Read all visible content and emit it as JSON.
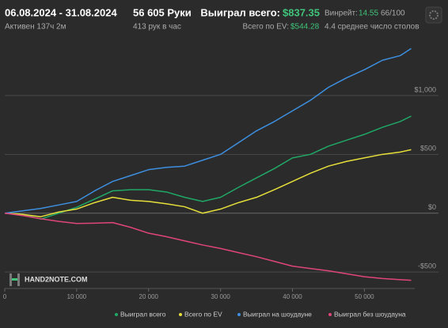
{
  "header": {
    "date_range": "06.08.2024 - 31.08.2024",
    "active": "Активен 137ч 2м",
    "hands": "56 605 Руки",
    "hands_per_hour": "413 рук в час",
    "won_label": "Выиграл всего:",
    "won_value": "$837.35",
    "ev_label": "Всего по EV:",
    "ev_value": "$544.28",
    "winrate_label": "Винрейт:",
    "winrate_value": "14.55",
    "winrate_unit": "66/100",
    "tables": "4.4 среднее число столов"
  },
  "watermark": "HAND2NOTE.COM",
  "chart_data": {
    "type": "line",
    "x": [
      0,
      2500,
      5000,
      7500,
      10000,
      12500,
      15000,
      17500,
      20000,
      22500,
      25000,
      27500,
      30000,
      32500,
      35000,
      37500,
      40000,
      42500,
      45000,
      47500,
      50000,
      52500,
      55000,
      56500
    ],
    "series": [
      {
        "name": "Выиграл всего",
        "color": "#1fa866",
        "values": [
          0,
          -10,
          -50,
          0,
          50,
          120,
          190,
          200,
          200,
          180,
          135,
          100,
          135,
          220,
          300,
          380,
          470,
          500,
          570,
          620,
          670,
          730,
          780,
          825
        ]
      },
      {
        "name": "Всего по EV",
        "color": "#e6df3a",
        "values": [
          0,
          -10,
          -30,
          10,
          35,
          90,
          135,
          110,
          100,
          80,
          55,
          0,
          35,
          90,
          135,
          200,
          270,
          340,
          400,
          440,
          470,
          500,
          520,
          540
        ]
      },
      {
        "name": "Выиграл на шоудауне",
        "color": "#3d8fe0",
        "values": [
          0,
          20,
          40,
          70,
          100,
          190,
          270,
          320,
          370,
          390,
          400,
          450,
          500,
          600,
          700,
          780,
          870,
          960,
          1070,
          1150,
          1220,
          1300,
          1340,
          1400
        ]
      },
      {
        "name": "Выиграл без шоудауна",
        "color": "#e0457a",
        "values": [
          0,
          -20,
          -47,
          -70,
          -87,
          -85,
          -80,
          -120,
          -170,
          -200,
          -235,
          -270,
          -300,
          -335,
          -370,
          -410,
          -450,
          -470,
          -490,
          -515,
          -540,
          -555,
          -565,
          -570
        ]
      }
    ],
    "xlim": [
      0,
      57000
    ],
    "xticks": [
      0,
      {
        "value": 10000,
        "label": "10 000"
      },
      {
        "value": 20000,
        "label": "20 000"
      },
      {
        "value": 30000,
        "label": "30 000"
      },
      {
        "value": 40000,
        "label": "40 000"
      },
      {
        "value": 50000,
        "label": "50 000"
      }
    ],
    "ylim": [
      -640,
      1510
    ],
    "yticks": [
      {
        "value": -500,
        "label": "-$500"
      },
      {
        "value": 0,
        "label": "$0"
      },
      {
        "value": 500,
        "label": "$500"
      },
      {
        "value": 1000,
        "label": "$1,000"
      }
    ],
    "grid": true
  }
}
